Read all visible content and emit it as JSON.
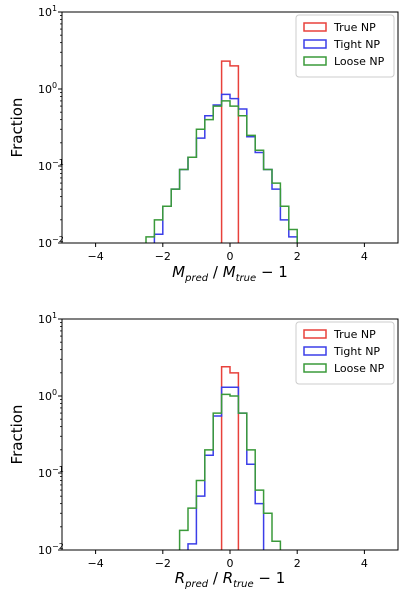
{
  "chart_data": [
    {
      "type": "histogram",
      "ylabel": "Fraction",
      "xlabel_main": "M",
      "xlabel_sub1": "pred",
      "xlabel_mid": " / M",
      "xlabel_sub2": "true",
      "xlabel_tail": " − 1",
      "xlim": [
        -5,
        5
      ],
      "ylim": [
        0.01,
        10
      ],
      "yscale": "log",
      "xticks": [
        -4,
        -2,
        0,
        2,
        4
      ],
      "yticks": [
        {
          "value": 0.01,
          "base": "10",
          "exp": "−2"
        },
        {
          "value": 0.1,
          "base": "10",
          "exp": "−1"
        },
        {
          "value": 1,
          "base": "10",
          "exp": "0"
        },
        {
          "value": 10,
          "base": "10",
          "exp": "1"
        }
      ],
      "legend_position": "top-right",
      "bin_width": 0.25,
      "series": [
        {
          "name": "True NP",
          "color": "#e8413b",
          "edges": [
            -0.25,
            0,
            0.25
          ],
          "values": [
            2.3,
            2.0
          ]
        },
        {
          "name": "Tight NP",
          "color": "#3b3ee8",
          "edges": [
            -2.25,
            -2.0,
            -1.75,
            -1.5,
            -1.25,
            -1.0,
            -0.75,
            -0.5,
            -0.25,
            0,
            0.25,
            0.5,
            0.75,
            1.0,
            1.25,
            1.5,
            1.75,
            2.0
          ],
          "values": [
            0.013,
            0.03,
            0.05,
            0.09,
            0.13,
            0.23,
            0.45,
            0.62,
            0.85,
            0.75,
            0.55,
            0.24,
            0.15,
            0.09,
            0.05,
            0.02,
            0.012
          ]
        },
        {
          "name": "Loose NP",
          "color": "#3a9a3a",
          "edges": [
            -2.5,
            -2.25,
            -2.0,
            -1.75,
            -1.5,
            -1.25,
            -1.0,
            -0.75,
            -0.5,
            -0.25,
            0,
            0.25,
            0.5,
            0.75,
            1.0,
            1.25,
            1.5,
            1.75,
            2.0
          ],
          "values": [
            0.012,
            0.02,
            0.03,
            0.05,
            0.09,
            0.13,
            0.3,
            0.4,
            0.6,
            0.7,
            0.6,
            0.45,
            0.25,
            0.16,
            0.09,
            0.06,
            0.03,
            0.015
          ]
        }
      ]
    },
    {
      "type": "histogram",
      "ylabel": "Fraction",
      "xlabel_main": "R",
      "xlabel_sub1": "pred",
      "xlabel_mid": " / R",
      "xlabel_sub2": "true",
      "xlabel_tail": " − 1",
      "xlim": [
        -5,
        5
      ],
      "ylim": [
        0.01,
        10
      ],
      "yscale": "log",
      "xticks": [
        -4,
        -2,
        0,
        2,
        4
      ],
      "yticks": [
        {
          "value": 0.01,
          "base": "10",
          "exp": "−2"
        },
        {
          "value": 0.1,
          "base": "10",
          "exp": "−1"
        },
        {
          "value": 1,
          "base": "10",
          "exp": "0"
        },
        {
          "value": 10,
          "base": "10",
          "exp": "1"
        }
      ],
      "legend_position": "top-right",
      "bin_width": 0.25,
      "series": [
        {
          "name": "True NP",
          "color": "#e8413b",
          "edges": [
            -0.25,
            0,
            0.25
          ],
          "values": [
            2.4,
            2.0
          ]
        },
        {
          "name": "Tight NP",
          "color": "#3b3ee8",
          "edges": [
            -1.25,
            -1.0,
            -0.75,
            -0.5,
            -0.25,
            0,
            0.25,
            0.5,
            0.75,
            1.0
          ],
          "values": [
            0.012,
            0.05,
            0.17,
            0.55,
            1.3,
            1.3,
            0.6,
            0.13,
            0.04
          ]
        },
        {
          "name": "Loose NP",
          "color": "#3a9a3a",
          "edges": [
            -1.5,
            -1.25,
            -1.0,
            -0.75,
            -0.5,
            -0.25,
            0,
            0.25,
            0.5,
            0.75,
            1.0,
            1.25,
            1.5
          ],
          "values": [
            0.018,
            0.035,
            0.08,
            0.2,
            0.6,
            1.05,
            1.0,
            0.6,
            0.2,
            0.06,
            0.03,
            0.013
          ]
        }
      ]
    }
  ]
}
